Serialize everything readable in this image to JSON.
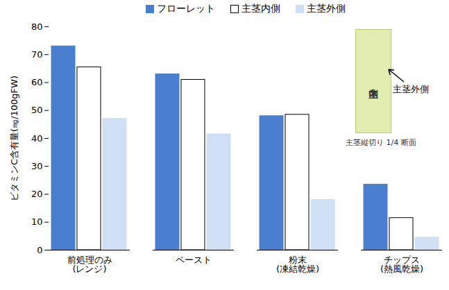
{
  "chart_data": {
    "type": "bar",
    "categories": [
      "前処理のみ\n(レンジ)",
      "ペースト",
      "粉末\n(凍結乾燥)",
      "チップス\n(熱風乾燥)"
    ],
    "series": [
      {
        "name": "フローレット",
        "color": "#4a7fd0",
        "values": [
          73,
          63,
          48,
          23.5
        ]
      },
      {
        "name": "主茎内側",
        "color": "#ffffff",
        "values": [
          65.5,
          61,
          48.5,
          11.5
        ]
      },
      {
        "name": "主茎外側",
        "color": "#cfe0f4",
        "values": [
          47,
          41.5,
          18,
          4.5
        ]
      }
    ],
    "ylabel": "ビタミンC含有量(㎎/100gFW)",
    "ylim": [
      0,
      80
    ],
    "yticks": [
      0,
      10,
      20,
      30,
      40,
      50,
      60,
      70,
      80
    ],
    "grid": false,
    "legend": "top",
    "annotations": [
      "主茎内側",
      "主茎外側",
      "主茎縦切り 1/4 断面"
    ]
  }
}
